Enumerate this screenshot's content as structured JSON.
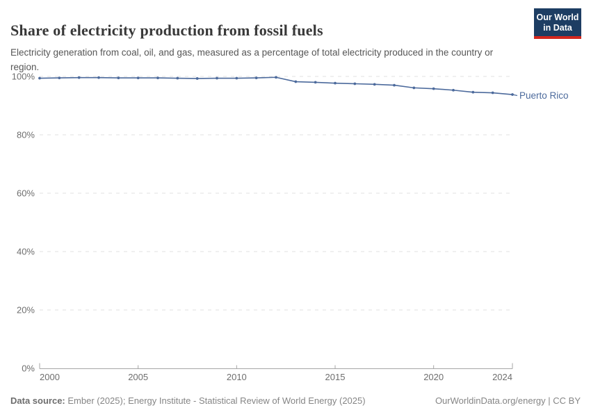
{
  "header": {
    "title": "Share of electricity production from fossil fuels",
    "subtitle": "Electricity generation from coal, oil, and gas, measured as a percentage of total electricity produced in the country or region.",
    "logo": {
      "line1": "Our World",
      "line2": "in Data",
      "bg_color": "#1d3d63",
      "accent_color": "#d3271e"
    }
  },
  "chart_data": {
    "type": "line",
    "title": "Share of electricity production from fossil fuels",
    "xlabel": "",
    "ylabel": "",
    "x": [
      2000,
      2001,
      2002,
      2003,
      2004,
      2005,
      2006,
      2007,
      2008,
      2009,
      2010,
      2011,
      2012,
      2013,
      2014,
      2015,
      2016,
      2017,
      2018,
      2019,
      2020,
      2021,
      2022,
      2023,
      2024
    ],
    "series": [
      {
        "name": "Puerto Rico",
        "color": "#4c6a9c",
        "values": [
          99.4,
          99.5,
          99.6,
          99.6,
          99.5,
          99.5,
          99.5,
          99.4,
          99.3,
          99.4,
          99.4,
          99.5,
          99.7,
          98.2,
          98.0,
          97.7,
          97.5,
          97.3,
          97.0,
          96.1,
          95.8,
          95.3,
          94.6,
          94.4,
          93.8
        ]
      }
    ],
    "xlim": [
      2000,
      2024
    ],
    "ylim": [
      0,
      100
    ],
    "x_tick_values": [
      2000,
      2005,
      2010,
      2015,
      2020,
      2024
    ],
    "x_tick_labels": [
      "2000",
      "2005",
      "2010",
      "2015",
      "2020",
      "2024"
    ],
    "y_tick_values": [
      0,
      20,
      40,
      60,
      80,
      100
    ],
    "y_tick_labels": [
      "0%",
      "20%",
      "40%",
      "60%",
      "80%",
      "100%"
    ],
    "grid": "horizontal-dashed",
    "legend_position": "end-of-line-label",
    "end_label": "Puerto Rico"
  },
  "footer": {
    "datasource_label": "Data source:",
    "datasource_text": " Ember (2025); Energy Institute - Statistical Review of World Energy (2025)",
    "link_text": "OurWorldinData.org/energy | CC BY"
  },
  "colors": {
    "line": "#4c6a9c",
    "grid": "#e2e2e2",
    "axis": "#a5a5a5",
    "tick_label": "#6e6e6e",
    "title": "#383838",
    "subtitle": "#565656",
    "footer": "#858585"
  }
}
